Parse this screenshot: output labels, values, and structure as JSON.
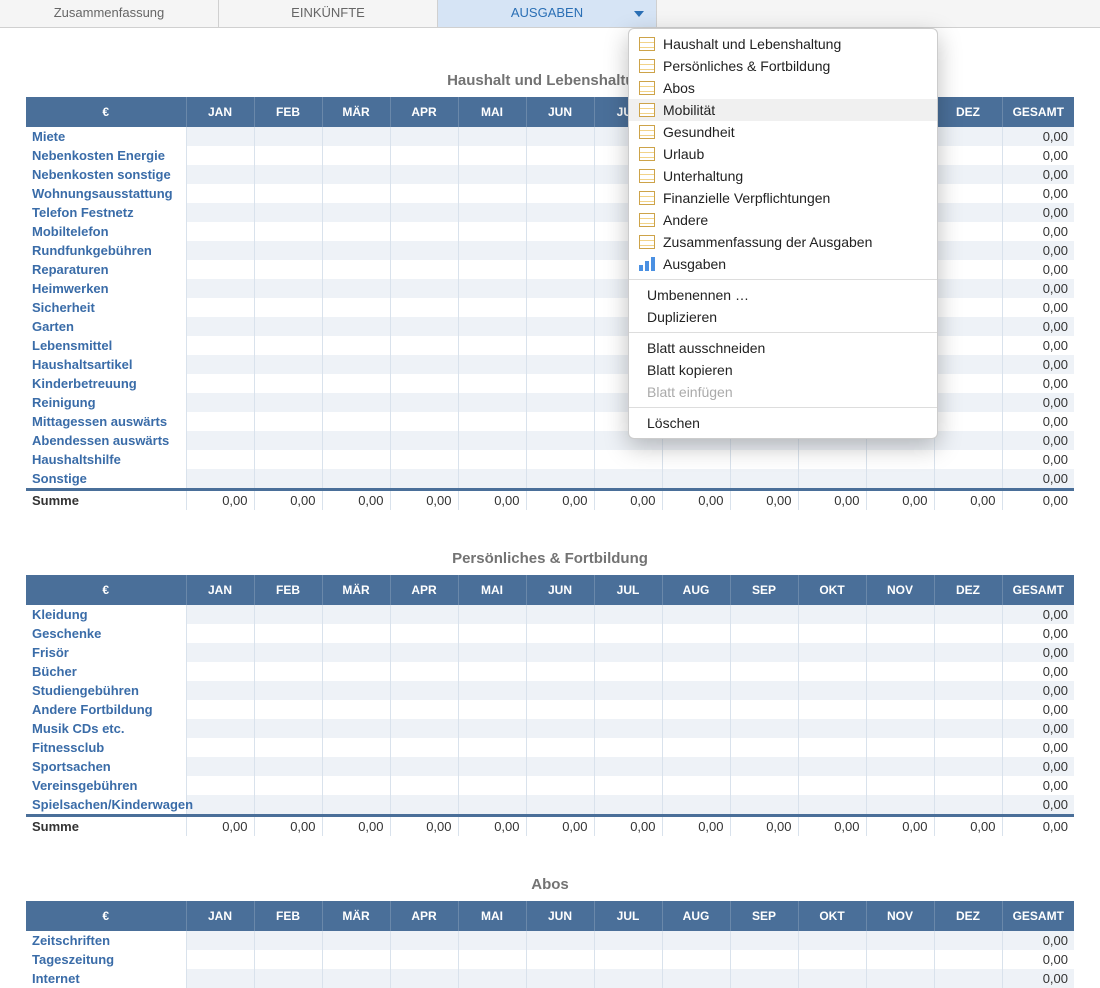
{
  "tabs": [
    {
      "label": "Zusammenfassung",
      "active": false
    },
    {
      "label": "EINKÜNFTE",
      "active": false
    },
    {
      "label": "AUSGABEN",
      "active": true
    }
  ],
  "months": [
    "JAN",
    "FEB",
    "MÄR",
    "APR",
    "MAI",
    "JUN",
    "JUL",
    "AUG",
    "SEP",
    "OKT",
    "NOV",
    "DEZ"
  ],
  "currency_header": "€",
  "total_header": "GESAMT",
  "sum_label": "Summe",
  "zero": "0,00",
  "colors": {
    "header_bg": "#4a6f99",
    "row_stripe": "#eef2f7",
    "row_label": "#3a6ca8",
    "tab_active_bg": "#d6e4f5",
    "tab_active_text": "#2a6fb5",
    "section_title": "#737373"
  },
  "sections": [
    {
      "title": "Haushalt und Lebenshaltung",
      "rows": [
        "Miete",
        "Nebenkosten Energie",
        "Nebenkosten sonstige",
        "Wohnungsausstattung",
        "Telefon Festnetz",
        "Mobiltelefon",
        "Rundfunkgebühren",
        "Reparaturen",
        "Heimwerken",
        "Sicherheit",
        "Garten",
        "Lebensmittel",
        "Haushaltsartikel",
        "Kinderbetreuung",
        "Reinigung",
        "Mittagessen auswärts",
        "Abendessen auswärts",
        "Haushaltshilfe",
        "Sonstige"
      ],
      "show_sum": true
    },
    {
      "title": "Persönliches & Fortbildung",
      "rows": [
        "Kleidung",
        "Geschenke",
        "Frisör",
        "Bücher",
        "Studiengebühren",
        "Andere Fortbildung",
        "Musik CDs etc.",
        "Fitnessclub",
        "Sportsachen",
        "Vereinsgebühren",
        "Spielsachen/Kinderwagen"
      ],
      "show_sum": true
    },
    {
      "title": "Abos",
      "rows": [
        "Zeitschriften",
        "Tageszeitung",
        "Internet"
      ],
      "show_sum": false
    }
  ],
  "dropdown": {
    "sheet_items": [
      {
        "label": "Haushalt und Lebenshaltung",
        "icon": "table"
      },
      {
        "label": "Persönliches & Fortbildung",
        "icon": "table"
      },
      {
        "label": "Abos",
        "icon": "table"
      },
      {
        "label": "Mobilität",
        "icon": "table",
        "hover": true
      },
      {
        "label": "Gesundheit",
        "icon": "table"
      },
      {
        "label": "Urlaub",
        "icon": "table"
      },
      {
        "label": "Unterhaltung",
        "icon": "table"
      },
      {
        "label": "Finanzielle Verpflichtungen",
        "icon": "table"
      },
      {
        "label": "Andere",
        "icon": "table"
      },
      {
        "label": "Zusammenfassung der Ausgaben",
        "icon": "table"
      },
      {
        "label": "Ausgaben",
        "icon": "chart"
      }
    ],
    "actions1": [
      {
        "label": "Umbenennen …"
      },
      {
        "label": "Duplizieren"
      }
    ],
    "actions2": [
      {
        "label": "Blatt ausschneiden"
      },
      {
        "label": "Blatt kopieren"
      },
      {
        "label": "Blatt einfügen",
        "disabled": true
      }
    ],
    "actions3": [
      {
        "label": "Löschen"
      }
    ]
  }
}
